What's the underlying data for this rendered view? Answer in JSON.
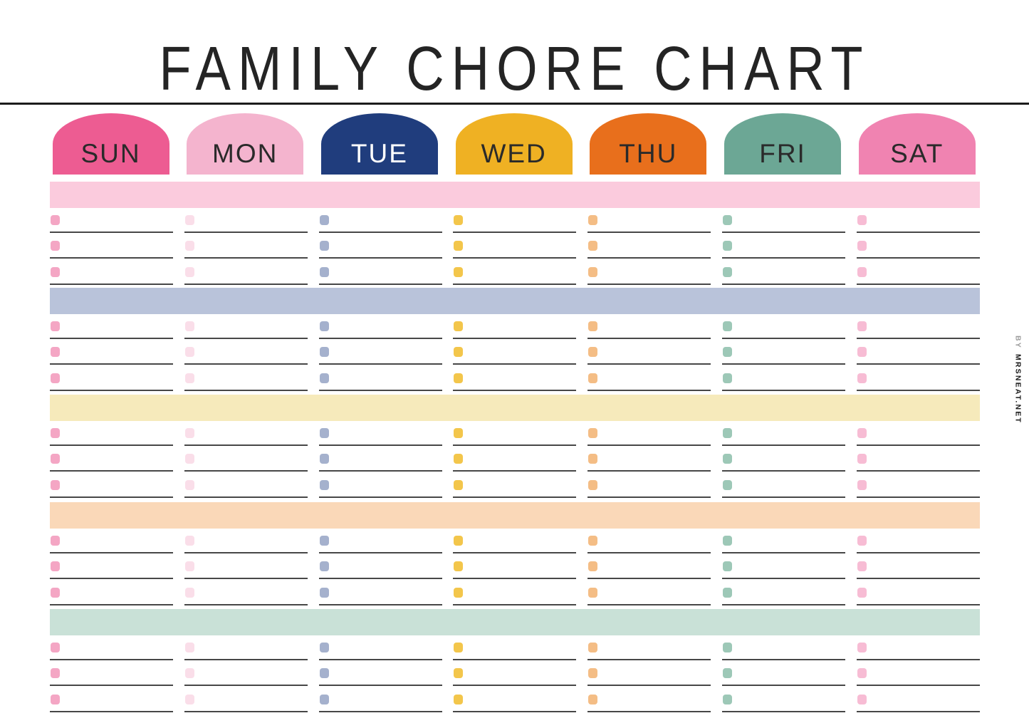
{
  "page": {
    "title": "FAMILY CHORE CHART",
    "byline": {
      "prefix": "BY",
      "text": "MRSNEAT.NET"
    },
    "text_color": "#242424",
    "line_color": "#474747"
  },
  "days": [
    {
      "label": "SUN",
      "tab_color": "#ED5C92",
      "label_color": "#2a2a2a",
      "item_color": "#F4A6C4"
    },
    {
      "label": "MON",
      "tab_color": "#F4B4CE",
      "label_color": "#2a2a2a",
      "item_color": "#FADEE9"
    },
    {
      "label": "TUE",
      "tab_color": "#203D7D",
      "label_color": "#FFFFFF",
      "item_color": "#A5B1CD"
    },
    {
      "label": "WED",
      "tab_color": "#EFB123",
      "label_color": "#2a2a2a",
      "item_color": "#F3C64B"
    },
    {
      "label": "THU",
      "tab_color": "#E86F1C",
      "label_color": "#2a2a2a",
      "item_color": "#F4BD85"
    },
    {
      "label": "FRI",
      "tab_color": "#6CA795",
      "label_color": "#2a2a2a",
      "item_color": "#9DC8B7"
    },
    {
      "label": "SAT",
      "tab_color": "#F083B1",
      "label_color": "#2a2a2a",
      "item_color": "#F7BCD4"
    }
  ],
  "sections": [
    {
      "band_color": "#FBCBDD"
    },
    {
      "band_color": "#B9C3DA"
    },
    {
      "band_color": "#F6EABB"
    },
    {
      "band_color": "#FAD8B8"
    },
    {
      "band_color": "#C9E1D7"
    }
  ],
  "rows_per_section": 3
}
